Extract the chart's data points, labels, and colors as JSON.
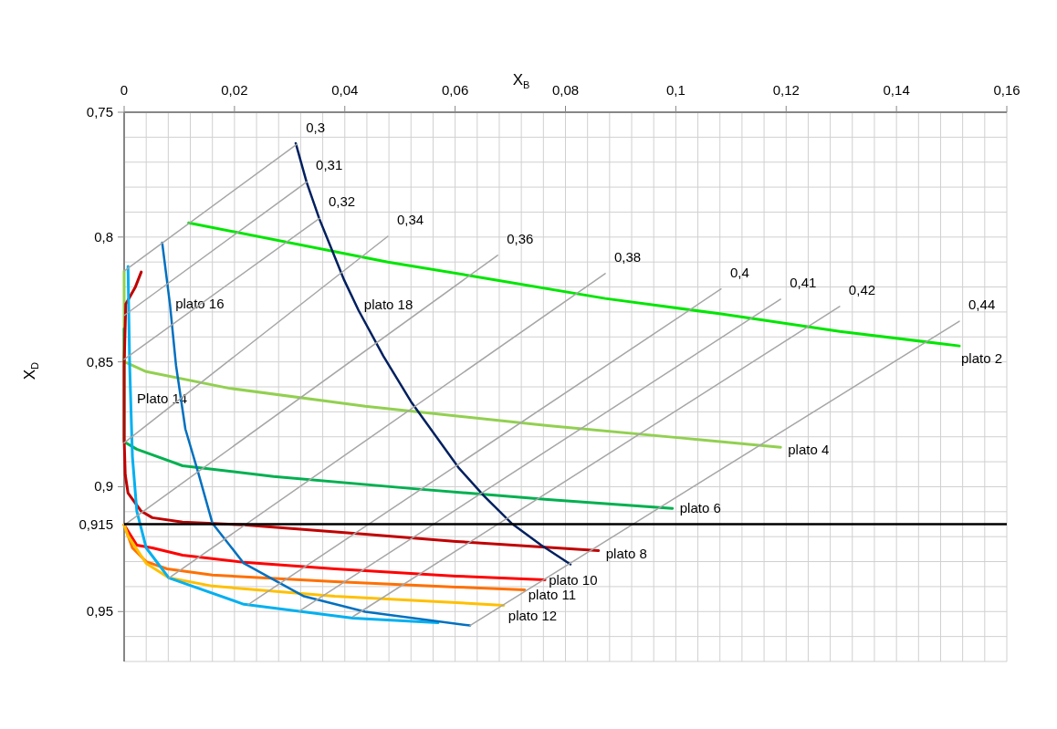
{
  "chart_data": {
    "type": "line",
    "xlabel": "X$_{B}$",
    "ylabel": "X$_{D}$",
    "xlim": [
      0,
      0.16
    ],
    "ylim": [
      0.97,
      0.75
    ],
    "xticks": [
      0,
      {
        "value": 0.004,
        "label": null
      },
      {
        "value": 0.008,
        "label": null
      },
      {
        "value": 0.012,
        "label": null
      },
      {
        "value": 0.016,
        "label": null
      },
      {
        "value": 0.02,
        "label": "0,02"
      },
      {
        "value": 0.024,
        "label": null
      },
      {
        "value": 0.028,
        "label": null
      },
      {
        "value": 0.032,
        "label": null
      },
      {
        "value": 0.036,
        "label": null
      },
      {
        "value": 0.04,
        "label": "0,04"
      },
      {
        "value": 0.044,
        "label": null
      },
      {
        "value": 0.048,
        "label": null
      },
      {
        "value": 0.052,
        "label": null
      },
      {
        "value": 0.056,
        "label": null
      },
      {
        "value": 0.06,
        "label": "0,06"
      },
      {
        "value": 0.064,
        "label": null
      },
      {
        "value": 0.068,
        "label": null
      },
      {
        "value": 0.072,
        "label": null
      },
      {
        "value": 0.076,
        "label": null
      },
      {
        "value": 0.08,
        "label": "0,08"
      },
      {
        "value": 0.084,
        "label": null
      },
      {
        "value": 0.088,
        "label": null
      },
      {
        "value": 0.092,
        "label": null
      },
      {
        "value": 0.096,
        "label": null
      },
      {
        "value": 0.1,
        "label": "0,1"
      },
      {
        "value": 0.104,
        "label": null
      },
      {
        "value": 0.108,
        "label": null
      },
      {
        "value": 0.112,
        "label": null
      },
      {
        "value": 0.116,
        "label": null
      },
      {
        "value": 0.12,
        "label": "0,12"
      },
      {
        "value": 0.124,
        "label": null
      },
      {
        "value": 0.128,
        "label": null
      },
      {
        "value": 0.132,
        "label": null
      },
      {
        "value": 0.136,
        "label": null
      },
      {
        "value": 0.14,
        "label": "0,14"
      },
      {
        "value": 0.144,
        "label": null
      },
      {
        "value": 0.148,
        "label": null
      },
      {
        "value": 0.152,
        "label": null
      },
      {
        "value": 0.156,
        "label": null
      },
      {
        "value": 0.16,
        "label": "0,16"
      }
    ],
    "yticks": [
      {
        "value": 0.75,
        "label": "0,75"
      },
      {
        "value": 0.76,
        "label": null
      },
      {
        "value": 0.77,
        "label": null
      },
      {
        "value": 0.78,
        "label": null
      },
      {
        "value": 0.79,
        "label": null
      },
      {
        "value": 0.8,
        "label": "0,8"
      },
      {
        "value": 0.81,
        "label": null
      },
      {
        "value": 0.82,
        "label": null
      },
      {
        "value": 0.83,
        "label": null
      },
      {
        "value": 0.84,
        "label": null
      },
      {
        "value": 0.85,
        "label": "0,85"
      },
      {
        "value": 0.86,
        "label": null
      },
      {
        "value": 0.87,
        "label": null
      },
      {
        "value": 0.88,
        "label": null
      },
      {
        "value": 0.89,
        "label": null
      },
      {
        "value": 0.9,
        "label": "0,9"
      },
      {
        "value": 0.91,
        "label": null
      },
      {
        "value": 0.92,
        "label": null
      },
      {
        "value": 0.93,
        "label": null
      },
      {
        "value": 0.94,
        "label": null
      },
      {
        "value": 0.95,
        "label": "0,95"
      },
      {
        "value": 0.96,
        "label": null
      },
      {
        "value": 0.97,
        "label": null
      }
    ],
    "grid": true,
    "line_style": "solid",
    "ref_lines": [
      {
        "axis": "y",
        "value": 0.915,
        "label": "0,915",
        "color": "#000000"
      }
    ],
    "series": [
      {
        "name": "plato 2",
        "color": "#00e600",
        "x": [
          0.0117,
          0.0478,
          0.0677,
          0.0872,
          0.1082,
          0.1297,
          0.1514
        ],
        "values": [
          0.7943,
          0.81,
          0.8173,
          0.8246,
          0.8308,
          0.8378,
          0.8436
        ]
      },
      {
        "name": "plato 4",
        "color": "#92d050",
        "x": [
          0,
          0,
          0.004,
          0.0189,
          0.0437,
          0.0768,
          0.1016,
          0.119
        ],
        "values": [
          0.8136,
          0.8499,
          0.8539,
          0.8605,
          0.8678,
          0.8755,
          0.8806,
          0.8842
        ]
      },
      {
        "name": "plato 6",
        "color": "#00b050",
        "x": [
          0,
          0,
          0.0023,
          0.0106,
          0.0271,
          0.052,
          0.0768,
          0.0994
        ],
        "values": [
          0.8367,
          0.882,
          0.885,
          0.8916,
          0.8959,
          0.9007,
          0.9051,
          0.9087
        ]
      },
      {
        "name": "plato 8",
        "color": "#c00000",
        "x": [
          0.0031,
          0.002,
          0.0003,
          0,
          0,
          0.0002,
          0.0007,
          0.0031,
          0.0051,
          0.0106,
          0.0217,
          0.0437,
          0.0602,
          0.086
        ],
        "values": [
          0.814,
          0.8202,
          0.8268,
          0.8513,
          0.8806,
          0.8952,
          0.9025,
          0.9098,
          0.9124,
          0.9142,
          0.9153,
          0.919,
          0.9219,
          0.9256
        ]
      },
      {
        "name": "plato 10",
        "color": "#ff0000",
        "x": [
          0,
          0.0023,
          0.0051,
          0.0106,
          0.0217,
          0.0382,
          0.0602,
          0.0763
        ],
        "values": [
          0.9153,
          0.9234,
          0.9245,
          0.9274,
          0.9303,
          0.9329,
          0.9358,
          0.9373
        ]
      },
      {
        "name": "plato 11",
        "color": "#ff7000",
        "x": [
          0,
          0.0015,
          0.004,
          0.0078,
          0.016,
          0.0382,
          0.0602,
          0.0726
        ],
        "values": [
          0.9153,
          0.9245,
          0.93,
          0.9329,
          0.9354,
          0.938,
          0.9402,
          0.9413
        ]
      },
      {
        "name": "plato 12",
        "color": "#ffc000",
        "x": [
          0,
          0.0007,
          0.004,
          0.0081,
          0.016,
          0.0382,
          0.0602,
          0.0688
        ],
        "values": [
          0.9153,
          0.9197,
          0.9307,
          0.9365,
          0.9398,
          0.9439,
          0.9464,
          0.9475
        ]
      },
      {
        "name": "Plato 14",
        "color": "#00b0f0",
        "x": [
          0.0007,
          0.001,
          0.0015,
          0.0023,
          0.004,
          0.0081,
          0.0217,
          0.0415,
          0.0569
        ],
        "values": [
          0.8118,
          0.8513,
          0.8879,
          0.9098,
          0.9245,
          0.9365,
          0.9471,
          0.9526,
          0.9545
        ]
      },
      {
        "name": "plato 16",
        "color": "#0070c0",
        "x": [
          0.0069,
          0.0083,
          0.0094,
          0.0111,
          0.0134,
          0.016,
          0.0217,
          0.0326,
          0.0437,
          0.0627
        ],
        "values": [
          0.8023,
          0.8268,
          0.8513,
          0.8769,
          0.8941,
          0.9146,
          0.9307,
          0.9439,
          0.9501,
          0.9556
        ]
      },
      {
        "name": "plato 18",
        "color": "#002060",
        "x": [
          0.0311,
          0.0331,
          0.0354,
          0.0399,
          0.0425,
          0.047,
          0.052,
          0.0607,
          0.0652,
          0.0702,
          0.0756,
          0.0809
        ],
        "values": [
          0.7624,
          0.7782,
          0.7928,
          0.8173,
          0.8294,
          0.8477,
          0.8659,
          0.8926,
          0.9036,
          0.9146,
          0.9234,
          0.9311
        ]
      },
      {
        "name": "0,3",
        "color": "#a6a6a6",
        "x": [
          0,
          0.0313
        ],
        "values": [
          0.8136,
          0.7628
        ]
      },
      {
        "name": "0,31",
        "color": "#a6a6a6",
        "x": [
          0,
          0.0331
        ],
        "values": [
          0.8314,
          0.7779
        ]
      },
      {
        "name": "0,32",
        "color": "#a6a6a6",
        "x": [
          0,
          0.0354
        ],
        "values": [
          0.849,
          0.7925
        ]
      },
      {
        "name": "0,34",
        "color": "#a6a6a6",
        "x": [
          0,
          0.0478
        ],
        "values": [
          0.8824,
          0.7997
        ]
      },
      {
        "name": "0,36",
        "color": "#a6a6a6",
        "x": [
          0,
          0.0677
        ],
        "values": [
          0.9154,
          0.8073
        ]
      },
      {
        "name": "0,38",
        "color": "#a6a6a6",
        "x": [
          0.0081,
          0.0872
        ],
        "values": [
          0.9366,
          0.8146
        ]
      },
      {
        "name": "0,4",
        "color": "#a6a6a6",
        "x": [
          0.0225,
          0.1082
        ],
        "values": [
          0.9472,
          0.8208
        ]
      },
      {
        "name": "0,41",
        "color": "#a6a6a6",
        "x": [
          0.0318,
          0.119
        ],
        "values": [
          0.9498,
          0.8249
        ]
      },
      {
        "name": "0,42",
        "color": "#a6a6a6",
        "x": [
          0.0415,
          0.1297
        ],
        "values": [
          0.952,
          0.8278
        ]
      },
      {
        "name": "0,44",
        "color": "#a6a6a6",
        "x": [
          0.0627,
          0.1514
        ],
        "values": [
          0.9556,
          0.8337
        ]
      }
    ]
  }
}
